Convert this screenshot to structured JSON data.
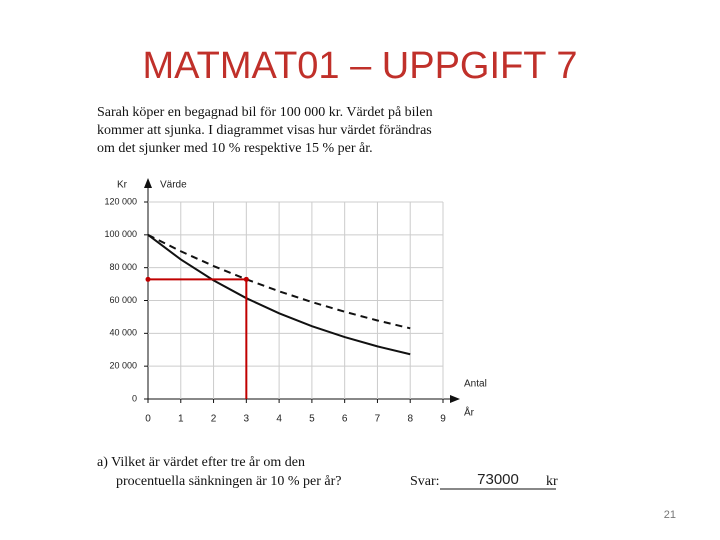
{
  "title": "MATMAT01 – UPPGIFT 7",
  "problem_text": [
    "Sarah köper en begagnad bil för 100 000 kr. Värdet på bilen",
    "kommer att sjunka. I diagrammet visas hur värdet förändras",
    "om det sjunker med 10 % respektive 15 % per år."
  ],
  "chart_data": {
    "type": "line",
    "y_label": [
      "Kr",
      "Värde"
    ],
    "x_label": [
      "Antal",
      "År"
    ],
    "x": [
      0,
      1,
      2,
      3,
      4,
      5,
      6,
      7,
      8
    ],
    "series": [
      {
        "color": "#111111",
        "dash": true,
        "values": [
          100000,
          90000,
          81000,
          72900,
          65610,
          59049,
          53144,
          47830,
          43047
        ]
      },
      {
        "color": "#111111",
        "dash": false,
        "values": [
          100000,
          85000,
          72250,
          61413,
          52201,
          44371,
          37715,
          32058,
          27249
        ]
      }
    ],
    "guide": {
      "x": 3,
      "y": 72900,
      "color": "#c00000"
    },
    "xlim": [
      0,
      9
    ],
    "xticks": [
      0,
      1,
      2,
      3,
      4,
      5,
      6,
      7,
      8,
      9
    ],
    "ylim": [
      0,
      120000
    ],
    "yticks": [
      0,
      {
        "value": 20000,
        "label": "20 000"
      },
      {
        "value": 40000,
        "label": "40 000"
      },
      {
        "value": 60000,
        "label": "60 000"
      },
      {
        "value": 80000,
        "label": "80 000"
      },
      {
        "value": 100000,
        "label": "100 000"
      },
      {
        "value": 120000,
        "label": "120 000"
      }
    ],
    "grid": true
  },
  "question": [
    "a)  Vilket är värdet efter tre år om den",
    "procentuella sänkningen är 10 % per år?"
  ],
  "answer": {
    "label": "Svar:",
    "value": 73000,
    "unit": "kr"
  },
  "page_number": 21
}
